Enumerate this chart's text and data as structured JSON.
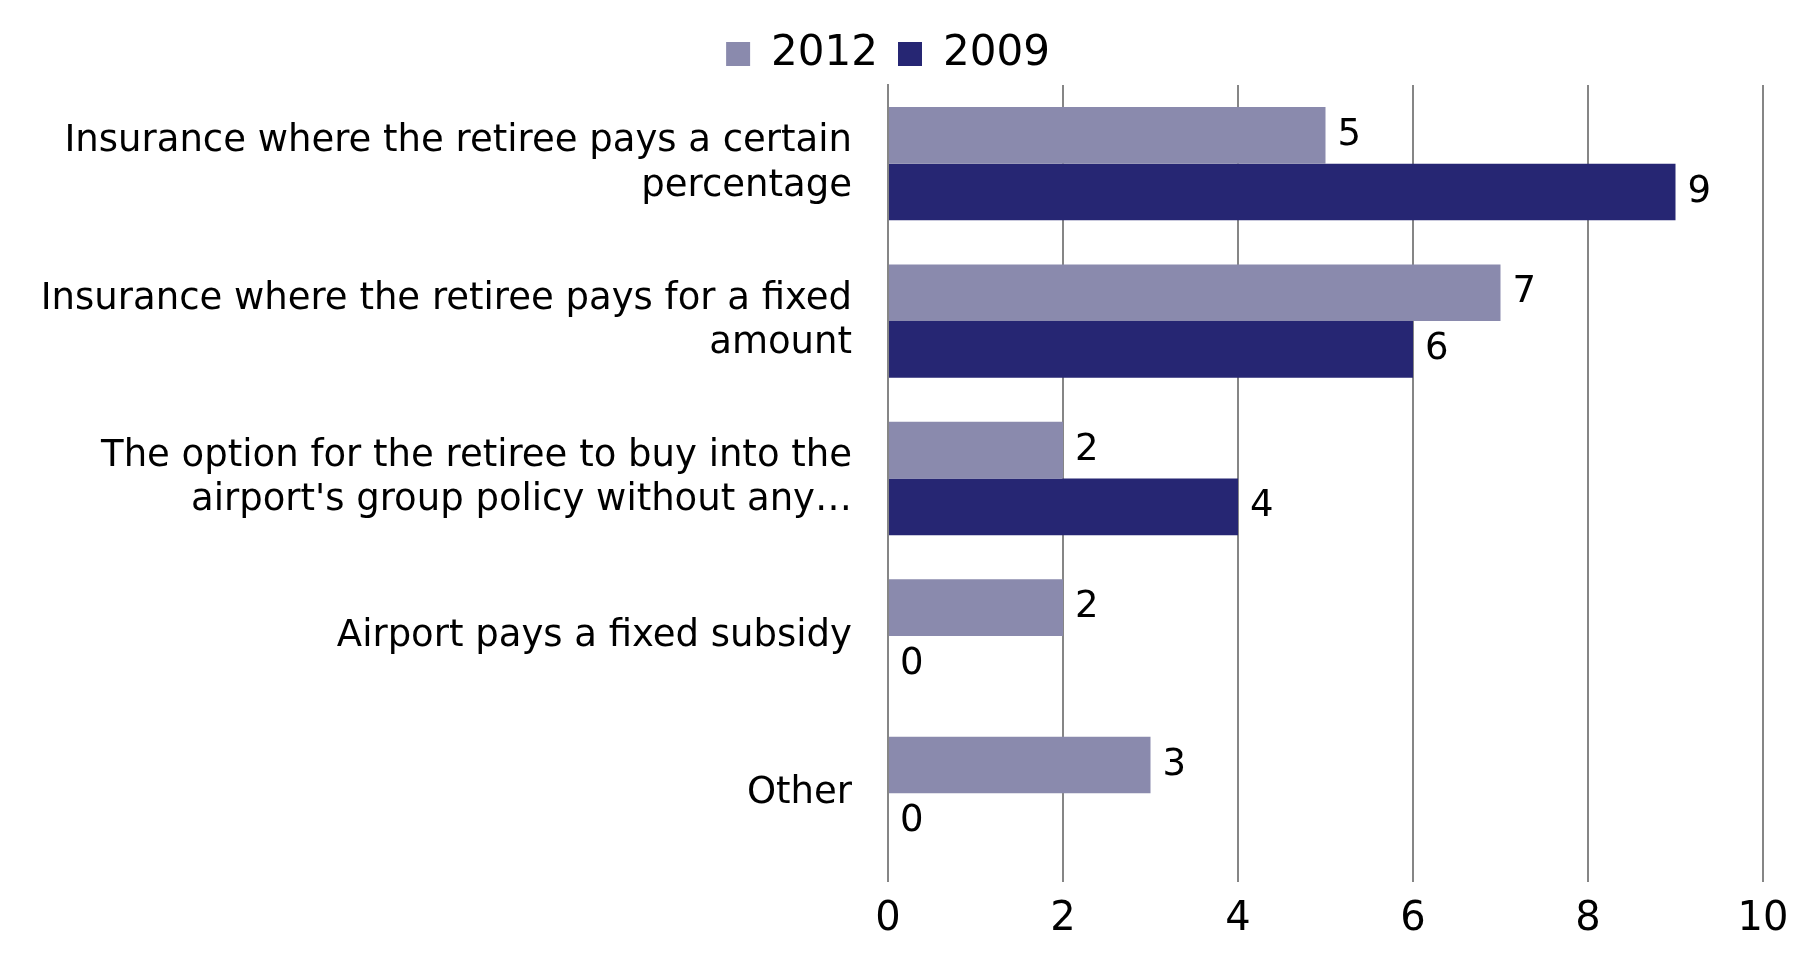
{
  "chart_data": {
    "type": "bar",
    "orientation": "horizontal",
    "categories": [
      "Insurance where the retiree pays a certain percentage",
      "Insurance where the retiree pays for a fixed amount",
      "The option for the retiree to buy into the airport's group policy without any…",
      "Airport pays a fixed subsidy",
      "Other"
    ],
    "series": [
      {
        "name": "2012",
        "color": "#8a8aad",
        "values": [
          5,
          7,
          2,
          2,
          3
        ]
      },
      {
        "name": "2009",
        "color": "#262673",
        "values": [
          9,
          6,
          4,
          0,
          0
        ]
      }
    ],
    "xlim": [
      0,
      10
    ],
    "xticks": [
      0,
      2,
      4,
      6,
      8,
      10
    ],
    "grid": "x",
    "legend": "top",
    "data_labels": true
  }
}
